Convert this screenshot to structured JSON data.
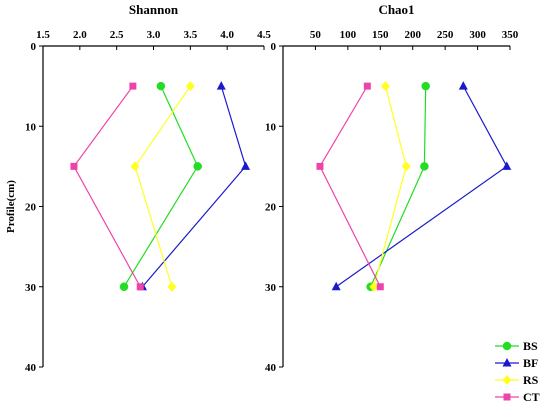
{
  "chart_data": [
    {
      "type": "line",
      "title": "Shannon",
      "xlabel": "",
      "ylabel": "Profile(cm)",
      "xlim": [
        1.5,
        4.5
      ],
      "ylim": [
        0,
        40
      ],
      "x_ticks": [
        "1.5",
        "2.0",
        "2.5",
        "3.0",
        "3.5",
        "4.0",
        "4.5"
      ],
      "y_ticks": [
        "0",
        "10",
        "20",
        "30",
        "40"
      ],
      "y_inverted": true,
      "x_axis_position": "top",
      "series": [
        {
          "name": "BS",
          "color": "#22dd22",
          "marker": "circle",
          "points": [
            {
              "x": 3.1,
              "y": 5
            },
            {
              "x": 3.6,
              "y": 15
            },
            {
              "x": 2.6,
              "y": 30
            }
          ]
        },
        {
          "name": "BF",
          "color": "#1a1acc",
          "marker": "triangle",
          "points": [
            {
              "x": 3.92,
              "y": 5
            },
            {
              "x": 4.25,
              "y": 15
            },
            {
              "x": 2.85,
              "y": 30
            }
          ]
        },
        {
          "name": "RS",
          "color": "#ffff22",
          "marker": "diamond",
          "points": [
            {
              "x": 3.5,
              "y": 5
            },
            {
              "x": 2.75,
              "y": 15
            },
            {
              "x": 3.25,
              "y": 30
            }
          ]
        },
        {
          "name": "CT",
          "color": "#ee44aa",
          "marker": "square",
          "points": [
            {
              "x": 2.72,
              "y": 5
            },
            {
              "x": 1.92,
              "y": 15
            },
            {
              "x": 2.82,
              "y": 30
            }
          ]
        }
      ]
    },
    {
      "type": "line",
      "title": "Chao1",
      "xlabel": "",
      "ylabel": "",
      "xlim": [
        0,
        350
      ],
      "ylim": [
        0,
        40
      ],
      "x_ticks": [
        "50",
        "100",
        "150",
        "200",
        "250",
        "300",
        "350"
      ],
      "y_ticks": [
        "0",
        "10",
        "20",
        "30",
        "40"
      ],
      "y_inverted": true,
      "x_axis_position": "top",
      "series": [
        {
          "name": "BS",
          "color": "#22dd22",
          "marker": "circle",
          "points": [
            {
              "x": 220,
              "y": 5
            },
            {
              "x": 218,
              "y": 15
            },
            {
              "x": 135,
              "y": 30
            }
          ]
        },
        {
          "name": "BF",
          "color": "#1a1acc",
          "marker": "triangle",
          "points": [
            {
              "x": 278,
              "y": 5
            },
            {
              "x": 345,
              "y": 15
            },
            {
              "x": 82,
              "y": 30
            }
          ]
        },
        {
          "name": "RS",
          "color": "#ffff22",
          "marker": "diamond",
          "points": [
            {
              "x": 158,
              "y": 5
            },
            {
              "x": 190,
              "y": 15
            },
            {
              "x": 140,
              "y": 30
            }
          ]
        },
        {
          "name": "CT",
          "color": "#ee44aa",
          "marker": "square",
          "points": [
            {
              "x": 130,
              "y": 5
            },
            {
              "x": 57,
              "y": 15
            },
            {
              "x": 150,
              "y": 30
            }
          ]
        }
      ]
    }
  ],
  "legend": {
    "placement": "bottom-right",
    "items": [
      {
        "name": "BS",
        "color": "#22dd22",
        "marker": "circle"
      },
      {
        "name": "BF",
        "color": "#1a1acc",
        "marker": "triangle"
      },
      {
        "name": "RS",
        "color": "#ffff22",
        "marker": "diamond"
      },
      {
        "name": "CT",
        "color": "#ee44aa",
        "marker": "square"
      }
    ]
  }
}
